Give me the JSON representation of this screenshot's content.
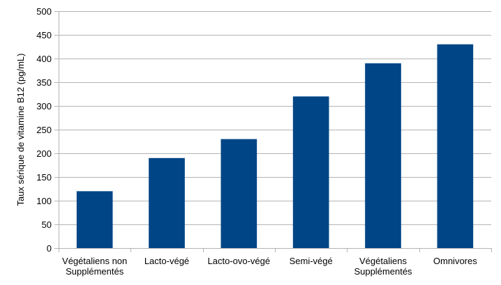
{
  "chart_data": {
    "type": "bar",
    "title": "",
    "xlabel": "",
    "ylabel": "Taux sérique de vitamine B12 (pg/mL)",
    "categories": [
      [
        "Végétaliens non",
        "Supplémentés"
      ],
      [
        "Lacto-végé"
      ],
      [
        "Lacto-ovo-végé"
      ],
      [
        "Semi-végé"
      ],
      [
        "Végétaliens",
        "Supplémentés"
      ],
      [
        "Omnivores"
      ]
    ],
    "values": [
      120,
      190,
      230,
      320,
      390,
      430
    ],
    "ylim": [
      0,
      500
    ],
    "yticks": [
      0,
      50,
      100,
      150,
      200,
      250,
      300,
      350,
      400,
      450,
      500
    ],
    "grid": true,
    "legend": "none",
    "colors": {
      "bar": "#004586",
      "grid": "#b3b3b3",
      "axis": "#b3b3b3"
    }
  }
}
